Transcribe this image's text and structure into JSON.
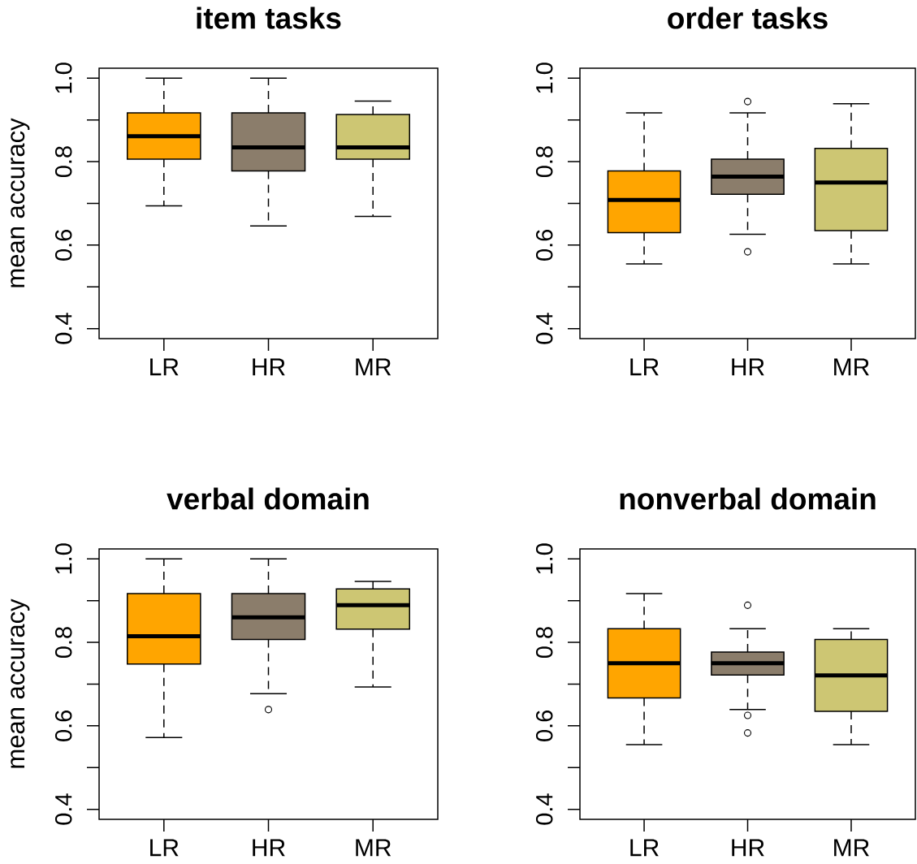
{
  "chart_data": [
    {
      "type": "box",
      "title": "item tasks",
      "ylabel": "mean accuracy",
      "categories": [
        "LR",
        "HR",
        "MR"
      ],
      "colors": [
        "#ffa500",
        "#8b7d6b",
        "#cdc673"
      ],
      "boxes": [
        {
          "low": 0.694,
          "q1": 0.806,
          "median": 0.861,
          "q3": 0.917,
          "high": 1.0
        },
        {
          "low": 0.646,
          "q1": 0.778,
          "median": 0.834,
          "q3": 0.917,
          "high": 1.0
        },
        {
          "low": 0.669,
          "q1": 0.806,
          "median": 0.834,
          "q3": 0.913,
          "high": 0.945
        }
      ],
      "ylim": [
        0.376,
        1.024
      ],
      "yticks": [
        0.4,
        {
          "value": 0.5,
          "label": null
        },
        0.6,
        {
          "value": 0.7,
          "label": null
        },
        0.8,
        {
          "value": 0.9,
          "label": null
        },
        {
          "value": 1.0,
          "label": "1.0"
        }
      ]
    },
    {
      "type": "box",
      "title": "order tasks",
      "categories": [
        "LR",
        "HR",
        "MR"
      ],
      "colors": [
        "#ffa500",
        "#8b7d6b",
        "#cdc673"
      ],
      "boxes": [
        {
          "low": 0.555,
          "q1": 0.63,
          "median": 0.708,
          "q3": 0.778,
          "high": 0.917
        },
        {
          "low": 0.626,
          "q1": 0.722,
          "median": 0.764,
          "q3": 0.806,
          "high": 0.917,
          "outliers": [
            0.944,
            0.584
          ]
        },
        {
          "low": 0.555,
          "q1": 0.635,
          "median": 0.75,
          "q3": 0.832,
          "high": 0.939
        }
      ],
      "ylim": [
        0.376,
        1.024
      ],
      "yticks": [
        0.4,
        {
          "value": 0.5,
          "label": null
        },
        0.6,
        {
          "value": 0.7,
          "label": null
        },
        0.8,
        {
          "value": 0.9,
          "label": null
        },
        {
          "value": 1.0,
          "label": "1.0"
        }
      ]
    },
    {
      "type": "box",
      "title": "verbal domain",
      "ylabel": "mean accuracy",
      "categories": [
        "LR",
        "HR",
        "MR"
      ],
      "colors": [
        "#ffa500",
        "#8b7d6b",
        "#cdc673"
      ],
      "boxes": [
        {
          "low": 0.572,
          "q1": 0.748,
          "median": 0.815,
          "q3": 0.917,
          "high": 1.0
        },
        {
          "low": 0.677,
          "q1": 0.807,
          "median": 0.86,
          "q3": 0.917,
          "high": 1.0,
          "outliers": [
            0.639
          ]
        },
        {
          "low": 0.693,
          "q1": 0.832,
          "median": 0.889,
          "q3": 0.928,
          "high": 0.946
        }
      ],
      "ylim": [
        0.376,
        1.024
      ],
      "yticks": [
        0.4,
        {
          "value": 0.5,
          "label": null
        },
        0.6,
        {
          "value": 0.7,
          "label": null
        },
        0.8,
        {
          "value": 0.9,
          "label": null
        },
        {
          "value": 1.0,
          "label": "1.0"
        }
      ]
    },
    {
      "type": "box",
      "title": "nonverbal domain",
      "categories": [
        "LR",
        "HR",
        "MR"
      ],
      "colors": [
        "#ffa500",
        "#8b7d6b",
        "#cdc673"
      ],
      "boxes": [
        {
          "low": 0.555,
          "q1": 0.667,
          "median": 0.75,
          "q3": 0.833,
          "high": 0.917
        },
        {
          "low": 0.639,
          "q1": 0.722,
          "median": 0.75,
          "q3": 0.777,
          "high": 0.833,
          "outliers": [
            0.889,
            0.625,
            0.583
          ]
        },
        {
          "low": 0.555,
          "q1": 0.635,
          "median": 0.721,
          "q3": 0.807,
          "high": 0.833
        }
      ],
      "ylim": [
        0.376,
        1.024
      ],
      "yticks": [
        0.4,
        {
          "value": 0.5,
          "label": null
        },
        0.6,
        {
          "value": 0.7,
          "label": null
        },
        0.8,
        {
          "value": 0.9,
          "label": null
        },
        {
          "value": 1.0,
          "label": "1.0"
        }
      ]
    }
  ]
}
